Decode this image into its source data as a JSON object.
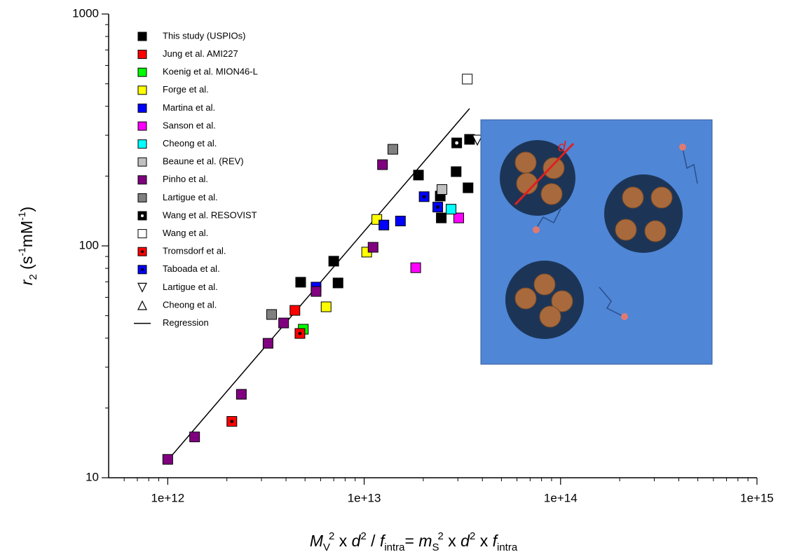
{
  "chart_data": {
    "type": "scatter",
    "xlog": true,
    "ylog": true,
    "xlim": [
      500000000000.0,
      1000000000000000.0
    ],
    "ylim": [
      10,
      1000
    ],
    "xticks": [
      {
        "value": 1000000000000.0,
        "label": "1e+12"
      },
      {
        "value": 10000000000000.0,
        "label": "1e+13"
      },
      {
        "value": 100000000000000.0,
        "label": "1e+14"
      },
      {
        "value": 1000000000000000.0,
        "label": "1e+15"
      }
    ],
    "yticks": [
      10,
      100,
      1000
    ],
    "xlabel": [
      "M",
      "V",
      "2",
      " x ",
      "d",
      "2",
      " / ",
      "f",
      "intra",
      "= ",
      "m",
      "S",
      "2",
      " x ",
      "d",
      "2",
      " x ",
      "f",
      "intra"
    ],
    "ylabel": [
      "r",
      "2",
      " (s",
      "-1",
      "mM",
      "-1",
      ")"
    ],
    "legend": "upper left",
    "inset": {
      "label": "d"
    },
    "series": [
      {
        "name": "This study (USPIOs)",
        "color": "#000000",
        "marker": "square",
        "x": [
          4750000000000.0,
          7000000000000.0,
          7360000000000.0,
          18900000000000.0,
          29400000000000.0,
          33800000000000.0,
          24400000000000.0,
          24700000000000.0,
          34400000000000.0
        ],
        "values": [
          69.7,
          85.9,
          69.2,
          202,
          209,
          178,
          164,
          132,
          288
        ]
      },
      {
        "name": "Jung et al. AMI227",
        "color": "#ff0000",
        "marker": "square",
        "x": [
          4440000000000.0
        ],
        "values": [
          52.7
        ]
      },
      {
        "name": "Koenig et al. MION46-L",
        "color": "#00ff00",
        "marker": "square",
        "x": [
          4900000000000.0
        ],
        "values": [
          43.7
        ]
      },
      {
        "name": "Forge et al.",
        "color": "#ffff00",
        "marker": "square",
        "x": [
          11600000000000.0,
          10300000000000.0,
          6400000000000.0
        ],
        "values": [
          130,
          94,
          54.6
        ]
      },
      {
        "name": "Martina et al.",
        "color": "#0000ff",
        "marker": "square",
        "x": [
          5690000000000.0,
          12600000000000.0,
          15300000000000.0
        ],
        "values": [
          66.4,
          123,
          128
        ]
      },
      {
        "name": "Sanson et al.",
        "color": "#ff00ff",
        "marker": "square",
        "x": [
          18300000000000.0,
          30300000000000.0
        ],
        "values": [
          80.5,
          132
        ]
      },
      {
        "name": "Cheong et al.",
        "color": "#00ffff",
        "marker": "square",
        "x": [
          27700000000000.0
        ],
        "values": [
          144
        ]
      },
      {
        "name": "Beaune et al. (REV)",
        "color": "#c0c0c0",
        "marker": "square",
        "x": [
          24900000000000.0
        ],
        "values": [
          175
        ]
      },
      {
        "name": "Pinho et al.",
        "color": "#800080",
        "marker": "square",
        "x": [
          1000000000000.0,
          1370000000000.0,
          2370000000000.0,
          3240000000000.0,
          3890000000000.0,
          5690000000000.0,
          11100000000000.0,
          12400000000000.0
        ],
        "values": [
          12.0,
          15.0,
          22.9,
          38.0,
          46.5,
          63.6,
          98.6,
          224
        ]
      },
      {
        "name": "Lartigue et al.",
        "color": "#808080",
        "marker": "square",
        "x": [
          3380000000000.0,
          14000000000000.0
        ],
        "values": [
          50.6,
          261
        ]
      },
      {
        "name": "Wang et al. RESOVIST",
        "color": "#000000",
        "dot": "#ffffff",
        "marker": "square-dot",
        "x": [
          29600000000000.0
        ],
        "values": [
          278
        ]
      },
      {
        "name": "Wang et al.",
        "color": "#ffffff",
        "marker": "square",
        "x": [
          33500000000000.0
        ],
        "values": [
          524
        ]
      },
      {
        "name": "Tromsdorf et al.",
        "color": "#ff0000",
        "dot": "#000000",
        "marker": "square-dot",
        "x": [
          2120000000000.0,
          4710000000000.0
        ],
        "values": [
          17.5,
          41.9
        ]
      },
      {
        "name": "Taboada et al.",
        "color": "#0000ff",
        "dot": "#000000",
        "marker": "square-dot",
        "x": [
          20200000000000.0,
          23700000000000.0
        ],
        "values": [
          163,
          147
        ]
      },
      {
        "name": "Lartigue et al.",
        "color": "#ffffff",
        "marker": "triangle-down",
        "x": [
          37700000000000.0
        ],
        "values": [
          286
        ]
      },
      {
        "name": "Cheong et al.",
        "color": "#ffffff",
        "marker": "triangle-up",
        "x": [],
        "values": []
      },
      {
        "name": "Regression",
        "color": "#000000",
        "marker": "line",
        "x": [
          1000000000000.0,
          34400000000000.0
        ],
        "values": [
          11.9,
          391
        ]
      }
    ]
  }
}
